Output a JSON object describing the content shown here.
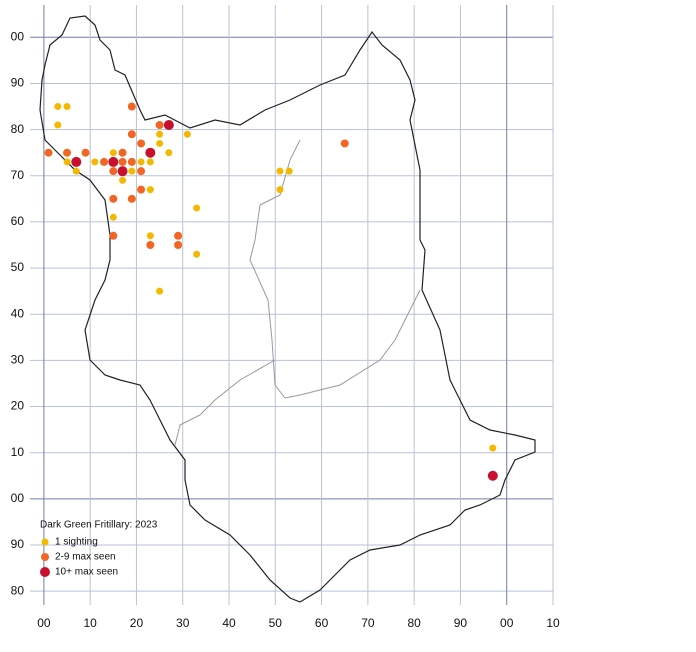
{
  "chart_data": {
    "type": "scatter",
    "title": "Dark Green Fritillary:  2023",
    "xlim": [
      -3,
      110
    ],
    "ylim": [
      -23,
      107
    ],
    "xticks": [
      {
        "value": 0,
        "label": "00"
      },
      10,
      20,
      30,
      40,
      50,
      60,
      70,
      80,
      90,
      {
        "value": 100,
        "label": "00"
      },
      {
        "value": 110,
        "label": "10"
      }
    ],
    "yticks": [
      {
        "value": 100,
        "label": "00"
      },
      90,
      80,
      70,
      60,
      50,
      40,
      30,
      20,
      10,
      {
        "value": 0,
        "label": "00"
      },
      {
        "value": -10,
        "label": "90"
      },
      {
        "value": -20,
        "label": "80"
      }
    ],
    "grid": true,
    "series": [
      {
        "name": "1 sighting",
        "color": "#f5b800",
        "x": [
          3,
          5,
          3,
          5,
          7,
          11,
          15,
          15,
          19,
          17,
          21,
          23,
          23,
          25,
          25,
          27,
          31,
          23,
          33,
          33,
          25,
          51,
          53,
          51,
          97
        ],
        "values": [
          85,
          85,
          81,
          73,
          71,
          73,
          75,
          61,
          71,
          69,
          73,
          73,
          67,
          79,
          77,
          75,
          79,
          57,
          63,
          53,
          45,
          71,
          71,
          67,
          11
        ]
      },
      {
        "name": "2-9 max seen",
        "color": "#f26522",
        "x": [
          1,
          5,
          9,
          13,
          15,
          17,
          17,
          19,
          21,
          19,
          19,
          21,
          25,
          15,
          19,
          21,
          15,
          23,
          29,
          29,
          65
        ],
        "values": [
          75,
          75,
          75,
          73,
          71,
          75,
          73,
          73,
          71,
          85,
          79,
          77,
          81,
          65,
          65,
          67,
          57,
          55,
          57,
          55,
          77
        ]
      },
      {
        "name": "10+ max seen",
        "color": "#c8102e",
        "x": [
          7,
          15,
          17,
          23,
          27,
          97
        ],
        "values": [
          73,
          73,
          71,
          75,
          81,
          5
        ]
      }
    ]
  }
}
